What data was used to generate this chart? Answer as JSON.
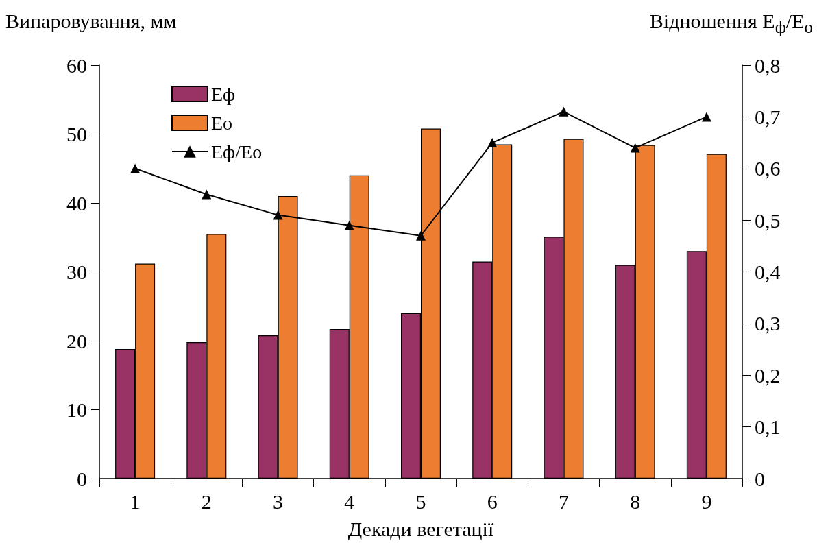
{
  "chart_data": {
    "type": "bar",
    "xlabel": "Декади вегетації",
    "ylabel": "Випаровування, мм",
    "y2label": "Відношення E$_{ф}$/E$_{о}$",
    "categories": [
      "1",
      "2",
      "3",
      "4",
      "5",
      "6",
      "7",
      "8",
      "9"
    ],
    "series": [
      {
        "name": "Eф",
        "color": "#993366",
        "values": [
          18.8,
          19.8,
          20.8,
          21.7,
          24.0,
          31.5,
          35.1,
          31.0,
          33.0
        ]
      },
      {
        "name": "Eo",
        "color": "#ed7d31",
        "values": [
          31.2,
          35.5,
          41.0,
          44.0,
          50.8,
          48.5,
          49.3,
          48.4,
          47.1
        ]
      },
      {
        "name": "Eф/Eo",
        "type": "line",
        "axis": "y2",
        "color": "#000000",
        "values": [
          0.6,
          0.55,
          0.51,
          0.49,
          0.47,
          0.65,
          0.71,
          0.64,
          0.7
        ]
      }
    ],
    "ylim": [
      0,
      60
    ],
    "yticks": [
      0,
      10,
      20,
      30,
      40,
      50,
      60
    ],
    "y2lim": [
      0,
      0.8
    ],
    "y2ticks": [
      {
        "value": 0,
        "label": "0"
      },
      {
        "value": 0.1,
        "label": "0,1"
      },
      {
        "value": 0.2,
        "label": "0,2"
      },
      {
        "value": 0.3,
        "label": "0,3"
      },
      {
        "value": 0.4,
        "label": "0,4"
      },
      {
        "value": 0.5,
        "label": "0,5"
      },
      {
        "value": 0.6,
        "label": "0,6"
      },
      {
        "value": 0.7,
        "label": "0,7"
      },
      {
        "value": 0.8,
        "label": "0,8"
      }
    ],
    "grid": false,
    "legend": "top left",
    "marker": "triangle",
    "line_style": "solid"
  }
}
